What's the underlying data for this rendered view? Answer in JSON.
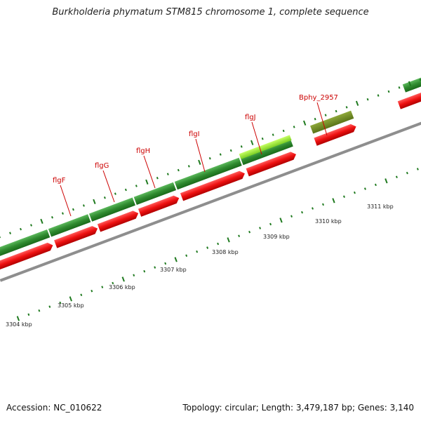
{
  "title": "Burkholderia phymatum STM815 chromosome 1, complete sequence",
  "footer": {
    "accession": "Accession: NC_010622",
    "summary": "Topology: circular; Length: 3,479,187 bp; Genes: 3,140"
  },
  "colors": {
    "forward_gene": "#2f8a2f",
    "highlight_gene": "#9ee03a",
    "olive_gene": "#6f8a23",
    "reverse_gene": "#e81a1a",
    "backbone": "#8e8e8e",
    "tick": "#1f7a1f",
    "label": "#cc0000"
  },
  "kbp_labels": [
    "3304 kbp",
    "3305 kbp",
    "3306 kbp",
    "3307 kbp",
    "3308 kbp",
    "3309 kbp",
    "3310 kbp",
    "3311 kbp"
  ],
  "genes": [
    {
      "name": "flgF"
    },
    {
      "name": "flgG"
    },
    {
      "name": "flgH"
    },
    {
      "name": "flgI"
    },
    {
      "name": "flgJ"
    },
    {
      "name": "Bphy_2957"
    }
  ]
}
